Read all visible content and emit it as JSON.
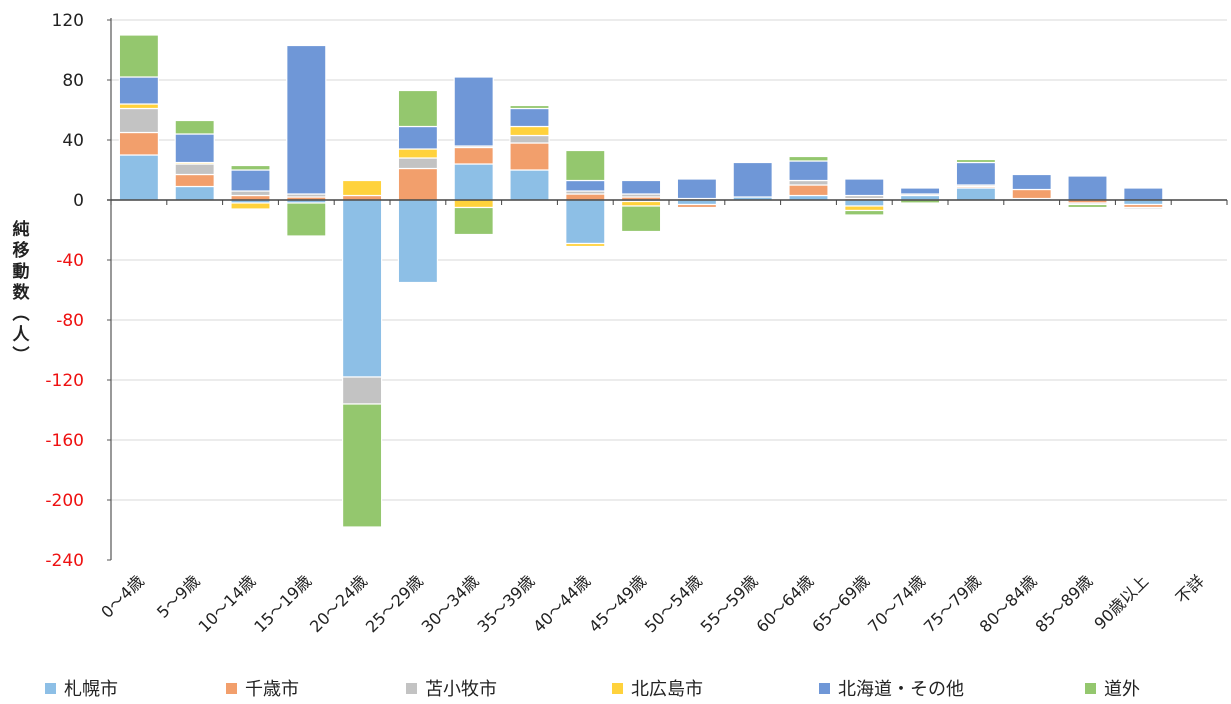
{
  "chart_data": {
    "type": "bar",
    "stacked": true,
    "ylabel": "純移動数（人）",
    "ylim": [
      -240,
      120
    ],
    "yticks": [
      120,
      80,
      40,
      0,
      -40,
      -80,
      -120,
      -160,
      -200,
      -240
    ],
    "negative_tick_color": "#ee1111",
    "grid": true,
    "legend_position": "bottom",
    "categories": [
      "0～4歳",
      "5～9歳",
      "10～14歳",
      "15～19歳",
      "20～24歳",
      "25～29歳",
      "30～34歳",
      "35～39歳",
      "40～44歳",
      "45～49歳",
      "50～54歳",
      "55～59歳",
      "60～64歳",
      "65～69歳",
      "70～74歳",
      "75～79歳",
      "80～84歳",
      "85～89歳",
      "90歳以上",
      "不詳"
    ],
    "series": [
      {
        "name": "札幌市",
        "color": "#8dbfe6",
        "values": [
          30,
          9,
          -2,
          -2,
          -118,
          -55,
          24,
          20,
          -29,
          -1,
          -3,
          2,
          3,
          -4,
          3,
          8,
          1,
          0,
          -3,
          0
        ]
      },
      {
        "name": "千歳市",
        "color": "#f29f6c",
        "values": [
          15,
          8,
          3,
          2,
          3,
          21,
          11,
          18,
          4,
          2,
          -2,
          0,
          7,
          1,
          0,
          1,
          6,
          -2,
          -2,
          0
        ]
      },
      {
        "name": "苫小牧市",
        "color": "#c3c3c3",
        "values": [
          16,
          7,
          3,
          2,
          -18,
          7,
          1,
          5,
          2,
          2,
          1,
          0,
          3,
          2,
          1,
          1,
          0,
          -1,
          -1,
          0
        ]
      },
      {
        "name": "北広島市",
        "color": "#ffd23c",
        "values": [
          3,
          1,
          -4,
          0,
          10,
          6,
          -5,
          6,
          -2,
          -3,
          0,
          0,
          0,
          -3,
          0,
          0,
          0,
          0,
          0,
          0
        ]
      },
      {
        "name": "北海道・その他",
        "color": "#6f97d7",
        "values": [
          18,
          19,
          14,
          99,
          0,
          15,
          46,
          12,
          7,
          9,
          13,
          23,
          13,
          11,
          4,
          15,
          10,
          16,
          8,
          0
        ]
      },
      {
        "name": "道外",
        "color": "#94c76e",
        "values": [
          28,
          9,
          3,
          -22,
          -82,
          24,
          -18,
          2,
          20,
          -17,
          0,
          0,
          3,
          -3,
          -2,
          2,
          0,
          -2,
          0,
          0
        ]
      }
    ]
  }
}
